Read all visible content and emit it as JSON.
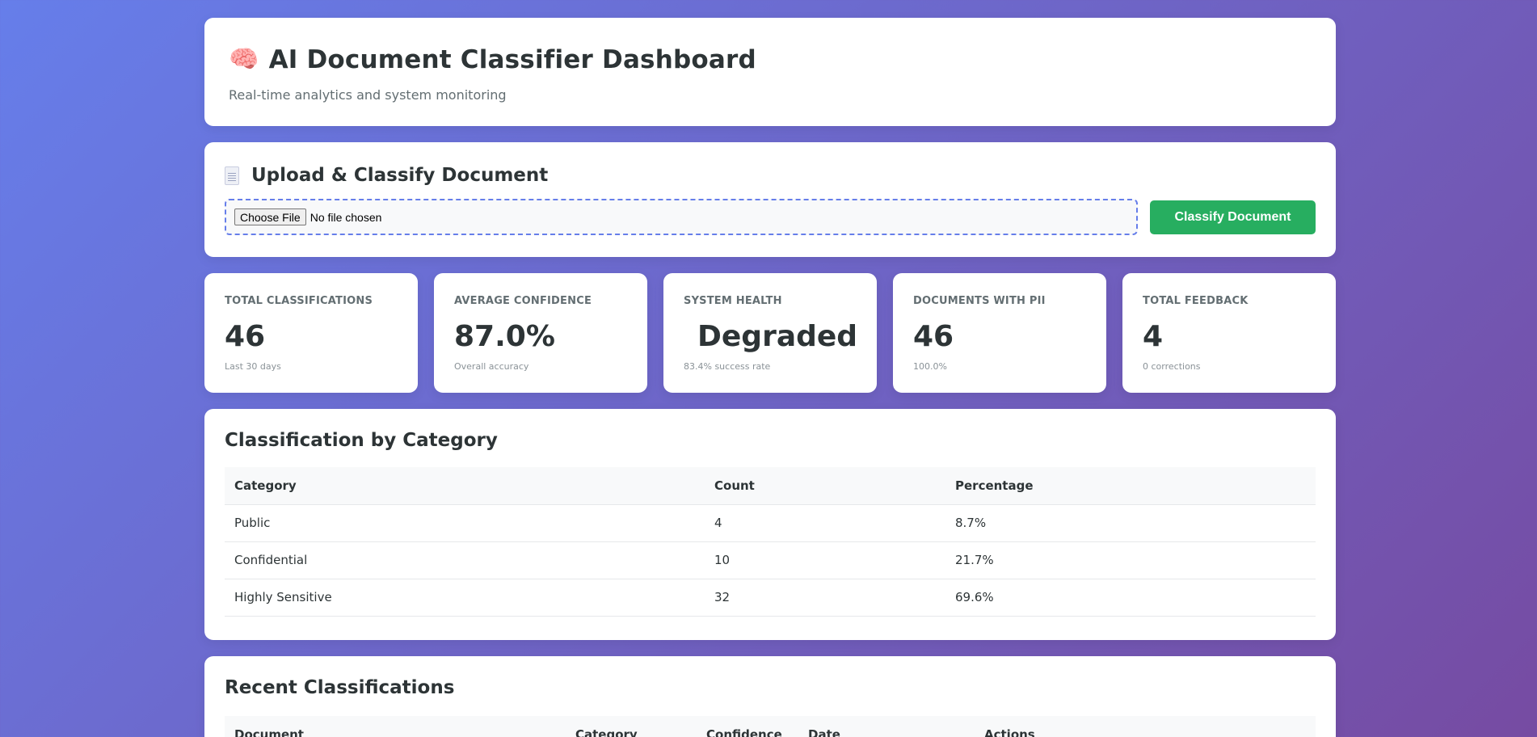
{
  "header": {
    "title": "AI Document Classifier Dashboard",
    "subtitle": "Real-time analytics and system monitoring",
    "icon": "brain-icon"
  },
  "upload": {
    "title": "Upload & Classify Document",
    "icon": "document-icon",
    "choose_label": "Choose File",
    "file_status": "No file chosen",
    "classify_label": "Classify Document"
  },
  "stats": [
    {
      "label": "Total Classifications",
      "value": "46",
      "sub": "Last 30 days"
    },
    {
      "label": "Average Confidence",
      "value": "87.0%",
      "sub": "Overall accuracy"
    },
    {
      "label": "System Health",
      "value": "Degraded",
      "sub": "83.4% success rate",
      "status_color": "#e74c3c"
    },
    {
      "label": "Documents with PII",
      "value": "46",
      "sub": "100.0%"
    },
    {
      "label": "Total Feedback",
      "value": "4",
      "sub": "0 corrections"
    }
  ],
  "category_table": {
    "title": "Classification by Category",
    "headers": [
      "Category",
      "Count",
      "Percentage"
    ],
    "rows": [
      [
        "Public",
        "4",
        "8.7%"
      ],
      [
        "Confidential",
        "10",
        "21.7%"
      ],
      [
        "Highly Sensitive",
        "32",
        "69.6%"
      ]
    ]
  },
  "recent": {
    "title": "Recent Classifications",
    "headers": [
      "Document",
      "Category",
      "Confidence",
      "Date",
      "Actions"
    ]
  },
  "colors": {
    "accent": "#667eea",
    "success": "#27ae60",
    "danger": "#e74c3c"
  }
}
